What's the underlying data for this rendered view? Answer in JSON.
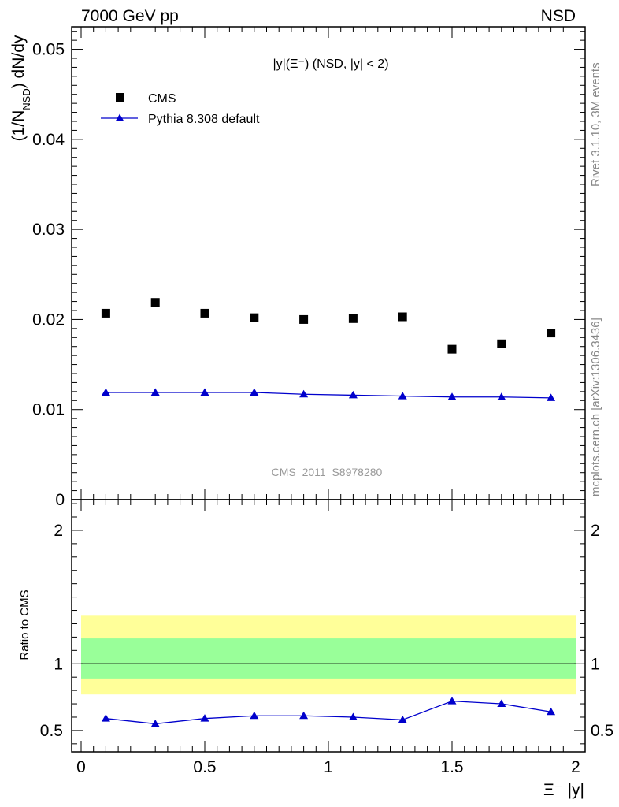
{
  "header": {
    "left": "7000 GeV pp",
    "right": "NSD"
  },
  "side_labels": {
    "rivet": "Rivet 3.1.10,  3M events",
    "mcplots": "mcplots.cern.ch [arXiv:1306.3436]"
  },
  "chart_data": {
    "type": "scatter",
    "title": "|y|(Ξ⁻) (NSD, |y| < 2)",
    "watermark": "CMS_2011_S8978280",
    "xlabel": "Ξ⁻ |y|",
    "ylabel": "(1/N_NSD) dN/dy",
    "ratio_ylabel": "Ratio to CMS",
    "xlim": [
      0,
      2
    ],
    "ylim": [
      0,
      0.0525
    ],
    "ratio_ylim": [
      0.34,
      2.23
    ],
    "x_ticks": [
      "0",
      "0.5",
      "1",
      "1.5",
      "2"
    ],
    "y_ticks": [
      "0",
      "0.01",
      "0.02",
      "0.03",
      "0.04",
      "0.05"
    ],
    "ratio_ticks": [
      "0.5",
      "1",
      "2"
    ],
    "legend_position": "top-left",
    "x": [
      0.1,
      0.3,
      0.5,
      0.7,
      0.9,
      1.1,
      1.3,
      1.5,
      1.7,
      1.9
    ],
    "series": [
      {
        "name": "CMS",
        "marker": "square",
        "color": "#000000",
        "values": [
          0.0207,
          0.0219,
          0.0207,
          0.0202,
          0.02,
          0.0201,
          0.0203,
          0.0167,
          0.0173,
          0.0185
        ]
      },
      {
        "name": "Pythia 8.308 default",
        "marker": "triangle",
        "color": "#0000cc",
        "values": [
          0.0119,
          0.0119,
          0.0119,
          0.0119,
          0.0117,
          0.0116,
          0.0115,
          0.0114,
          0.0114,
          0.0113
        ]
      }
    ],
    "ratio": {
      "values": [
        0.59,
        0.55,
        0.59,
        0.61,
        0.61,
        0.6,
        0.58,
        0.72,
        0.7,
        0.64
      ],
      "band_stat": [
        0.89,
        1.19
      ],
      "band_total": [
        0.77,
        1.36
      ],
      "band_stat_color": "#99ff99",
      "band_total_color": "#ffff99"
    }
  }
}
